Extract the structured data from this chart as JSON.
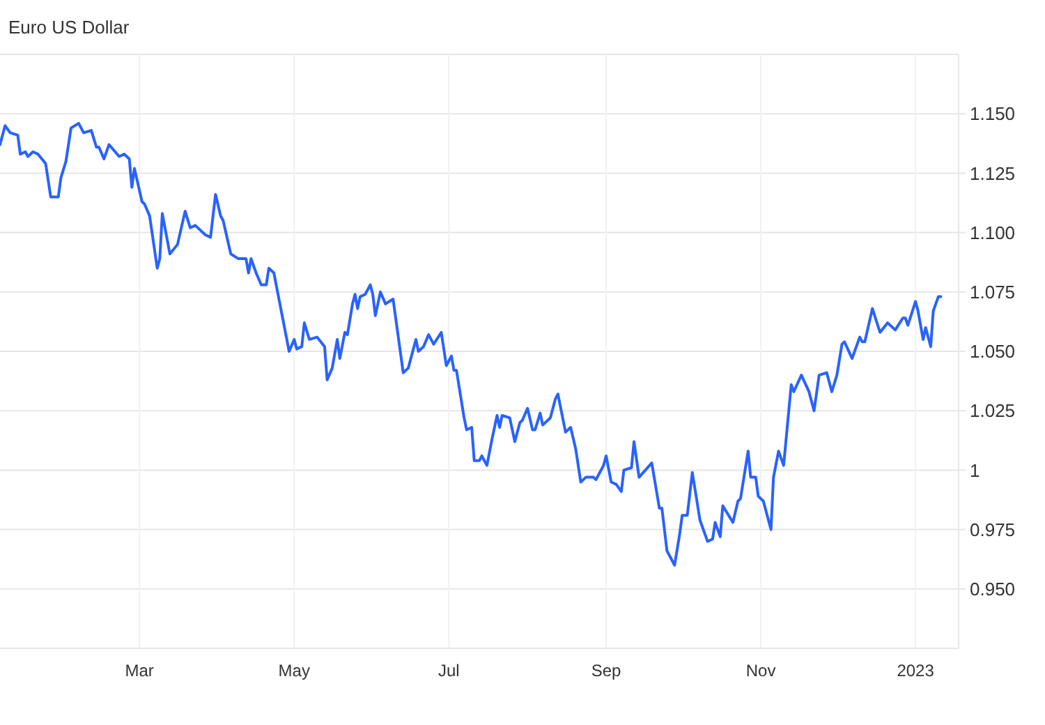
{
  "chart_data": {
    "type": "line",
    "title": "Euro US Dollar",
    "x": [
      "2022-01-05",
      "2022-01-07",
      "2022-01-09",
      "2022-01-12",
      "2022-01-13",
      "2022-01-15",
      "2022-01-16",
      "2022-01-18",
      "2022-01-20",
      "2022-01-23",
      "2022-01-25",
      "2022-01-28",
      "2022-01-29",
      "2022-01-31",
      "2022-02-02",
      "2022-02-05",
      "2022-02-07",
      "2022-02-10",
      "2022-02-12",
      "2022-02-13",
      "2022-02-15",
      "2022-02-17",
      "2022-02-21",
      "2022-02-23",
      "2022-02-25",
      "2022-02-26",
      "2022-02-27",
      "2022-03-02",
      "2022-03-03",
      "2022-03-05",
      "2022-03-08",
      "2022-03-09",
      "2022-03-10",
      "2022-03-13",
      "2022-03-16",
      "2022-03-19",
      "2022-03-21",
      "2022-03-23",
      "2022-03-27",
      "2022-03-29",
      "2022-03-31",
      "2022-04-02",
      "2022-04-03",
      "2022-04-06",
      "2022-04-09",
      "2022-04-12",
      "2022-04-13",
      "2022-04-14",
      "2022-04-16",
      "2022-04-18",
      "2022-04-20",
      "2022-04-21",
      "2022-04-23",
      "2022-04-29",
      "2022-05-01",
      "2022-05-02",
      "2022-05-04",
      "2022-05-05",
      "2022-05-07",
      "2022-05-10",
      "2022-05-13",
      "2022-05-14",
      "2022-05-16",
      "2022-05-18",
      "2022-05-19",
      "2022-05-21",
      "2022-05-22",
      "2022-05-24",
      "2022-05-25",
      "2022-05-26",
      "2022-05-27",
      "2022-05-29",
      "2022-05-31",
      "2022-06-01",
      "2022-06-02",
      "2022-06-04",
      "2022-06-06",
      "2022-06-09",
      "2022-06-13",
      "2022-06-15",
      "2022-06-18",
      "2022-06-19",
      "2022-06-21",
      "2022-06-23",
      "2022-06-25",
      "2022-06-28",
      "2022-06-30",
      "2022-07-02",
      "2022-07-03",
      "2022-07-04",
      "2022-07-07",
      "2022-07-08",
      "2022-07-10",
      "2022-07-11",
      "2022-07-13",
      "2022-07-14",
      "2022-07-16",
      "2022-07-18",
      "2022-07-20",
      "2022-07-21",
      "2022-07-22",
      "2022-07-25",
      "2022-07-27",
      "2022-07-29",
      "2022-07-30",
      "2022-08-01",
      "2022-08-03",
      "2022-08-04",
      "2022-08-06",
      "2022-08-07",
      "2022-08-10",
      "2022-08-12",
      "2022-08-13",
      "2022-08-16",
      "2022-08-18",
      "2022-08-20",
      "2022-08-22",
      "2022-08-24",
      "2022-08-27",
      "2022-08-28",
      "2022-08-31",
      "2022-09-01",
      "2022-09-03",
      "2022-09-05",
      "2022-09-07",
      "2022-09-08",
      "2022-09-11",
      "2022-09-12",
      "2022-09-14",
      "2022-09-19",
      "2022-09-22",
      "2022-09-23",
      "2022-09-25",
      "2022-09-28",
      "2022-09-30",
      "2022-10-01",
      "2022-10-03",
      "2022-10-05",
      "2022-10-08",
      "2022-10-11",
      "2022-10-13",
      "2022-10-14",
      "2022-10-16",
      "2022-10-17",
      "2022-10-21",
      "2022-10-23",
      "2022-10-24",
      "2022-10-27",
      "2022-10-28",
      "2022-10-30",
      "2022-10-31",
      "2022-11-02",
      "2022-11-05",
      "2022-11-06",
      "2022-11-08",
      "2022-11-10",
      "2022-11-13",
      "2022-11-14",
      "2022-11-17",
      "2022-11-20",
      "2022-11-22",
      "2022-11-24",
      "2022-11-27",
      "2022-11-29",
      "2022-12-01",
      "2022-12-03",
      "2022-12-04",
      "2022-12-07",
      "2022-12-10",
      "2022-12-11",
      "2022-12-12",
      "2022-12-15",
      "2022-12-18",
      "2022-12-21",
      "2022-12-24",
      "2022-12-27",
      "2022-12-28",
      "2022-12-29",
      "2023-01-01",
      "2023-01-02",
      "2023-01-04",
      "2023-01-05",
      "2023-01-07",
      "2023-01-08",
      "2023-01-10",
      "2023-01-11"
    ],
    "series": [
      {
        "color": "#2962ff",
        "values": [
          1.137,
          1.145,
          1.142,
          1.141,
          1.133,
          1.134,
          1.132,
          1.134,
          1.133,
          1.129,
          1.115,
          1.115,
          1.123,
          1.13,
          1.144,
          1.146,
          1.142,
          1.143,
          1.136,
          1.136,
          1.131,
          1.137,
          1.132,
          1.133,
          1.131,
          1.119,
          1.127,
          1.113,
          1.112,
          1.107,
          1.085,
          1.089,
          1.108,
          1.091,
          1.095,
          1.109,
          1.102,
          1.103,
          1.099,
          1.098,
          1.116,
          1.107,
          1.105,
          1.091,
          1.089,
          1.089,
          1.083,
          1.089,
          1.083,
          1.078,
          1.078,
          1.085,
          1.083,
          1.05,
          1.055,
          1.051,
          1.052,
          1.062,
          1.055,
          1.056,
          1.052,
          1.038,
          1.043,
          1.055,
          1.047,
          1.058,
          1.057,
          1.07,
          1.074,
          1.068,
          1.073,
          1.074,
          1.078,
          1.074,
          1.065,
          1.075,
          1.07,
          1.072,
          1.041,
          1.043,
          1.055,
          1.05,
          1.052,
          1.057,
          1.053,
          1.058,
          1.044,
          1.048,
          1.042,
          1.042,
          1.022,
          1.017,
          1.018,
          1.004,
          1.004,
          1.006,
          1.002,
          1.013,
          1.023,
          1.018,
          1.023,
          1.022,
          1.012,
          1.02,
          1.021,
          1.026,
          1.017,
          1.017,
          1.024,
          1.019,
          1.022,
          1.03,
          1.032,
          1.016,
          1.018,
          1.009,
          0.995,
          0.997,
          0.997,
          0.996,
          1.002,
          1.006,
          0.995,
          0.994,
          0.991,
          1.0,
          1.001,
          1.012,
          0.997,
          1.003,
          0.984,
          0.984,
          0.966,
          0.96,
          0.973,
          0.981,
          0.981,
          0.999,
          0.979,
          0.97,
          0.971,
          0.978,
          0.972,
          0.985,
          0.978,
          0.987,
          0.988,
          1.008,
          0.997,
          0.997,
          0.989,
          0.987,
          0.975,
          0.997,
          1.008,
          1.002,
          1.036,
          1.033,
          1.04,
          1.033,
          1.025,
          1.04,
          1.041,
          1.033,
          1.04,
          1.053,
          1.054,
          1.047,
          1.056,
          1.054,
          1.054,
          1.068,
          1.058,
          1.062,
          1.059,
          1.064,
          1.064,
          1.061,
          1.071,
          1.067,
          1.055,
          1.06,
          1.052,
          1.067,
          1.073,
          1.073
        ]
      }
    ],
    "xlim": [
      "2022-01-05",
      "2023-01-18"
    ],
    "xticks": [
      {
        "value": "2022-03-01",
        "label": "Mar"
      },
      {
        "value": "2022-05-01",
        "label": "May"
      },
      {
        "value": "2022-07-01",
        "label": "Jul"
      },
      {
        "value": "2022-09-01",
        "label": "Sep"
      },
      {
        "value": "2022-11-01",
        "label": "Nov"
      },
      {
        "value": "2023-01-01",
        "label": "2023"
      }
    ],
    "ylim": [
      0.925,
      1.175
    ],
    "yticks": [
      {
        "value": 0.95,
        "label": "0.950"
      },
      0.975,
      1,
      1.025,
      {
        "value": 1.05,
        "label": "1.050"
      },
      1.075,
      {
        "value": 1.1,
        "label": "1.100"
      },
      1.125,
      {
        "value": 1.15,
        "label": "1.150"
      }
    ],
    "grid": true,
    "marker": "none",
    "line_style": "solid"
  }
}
